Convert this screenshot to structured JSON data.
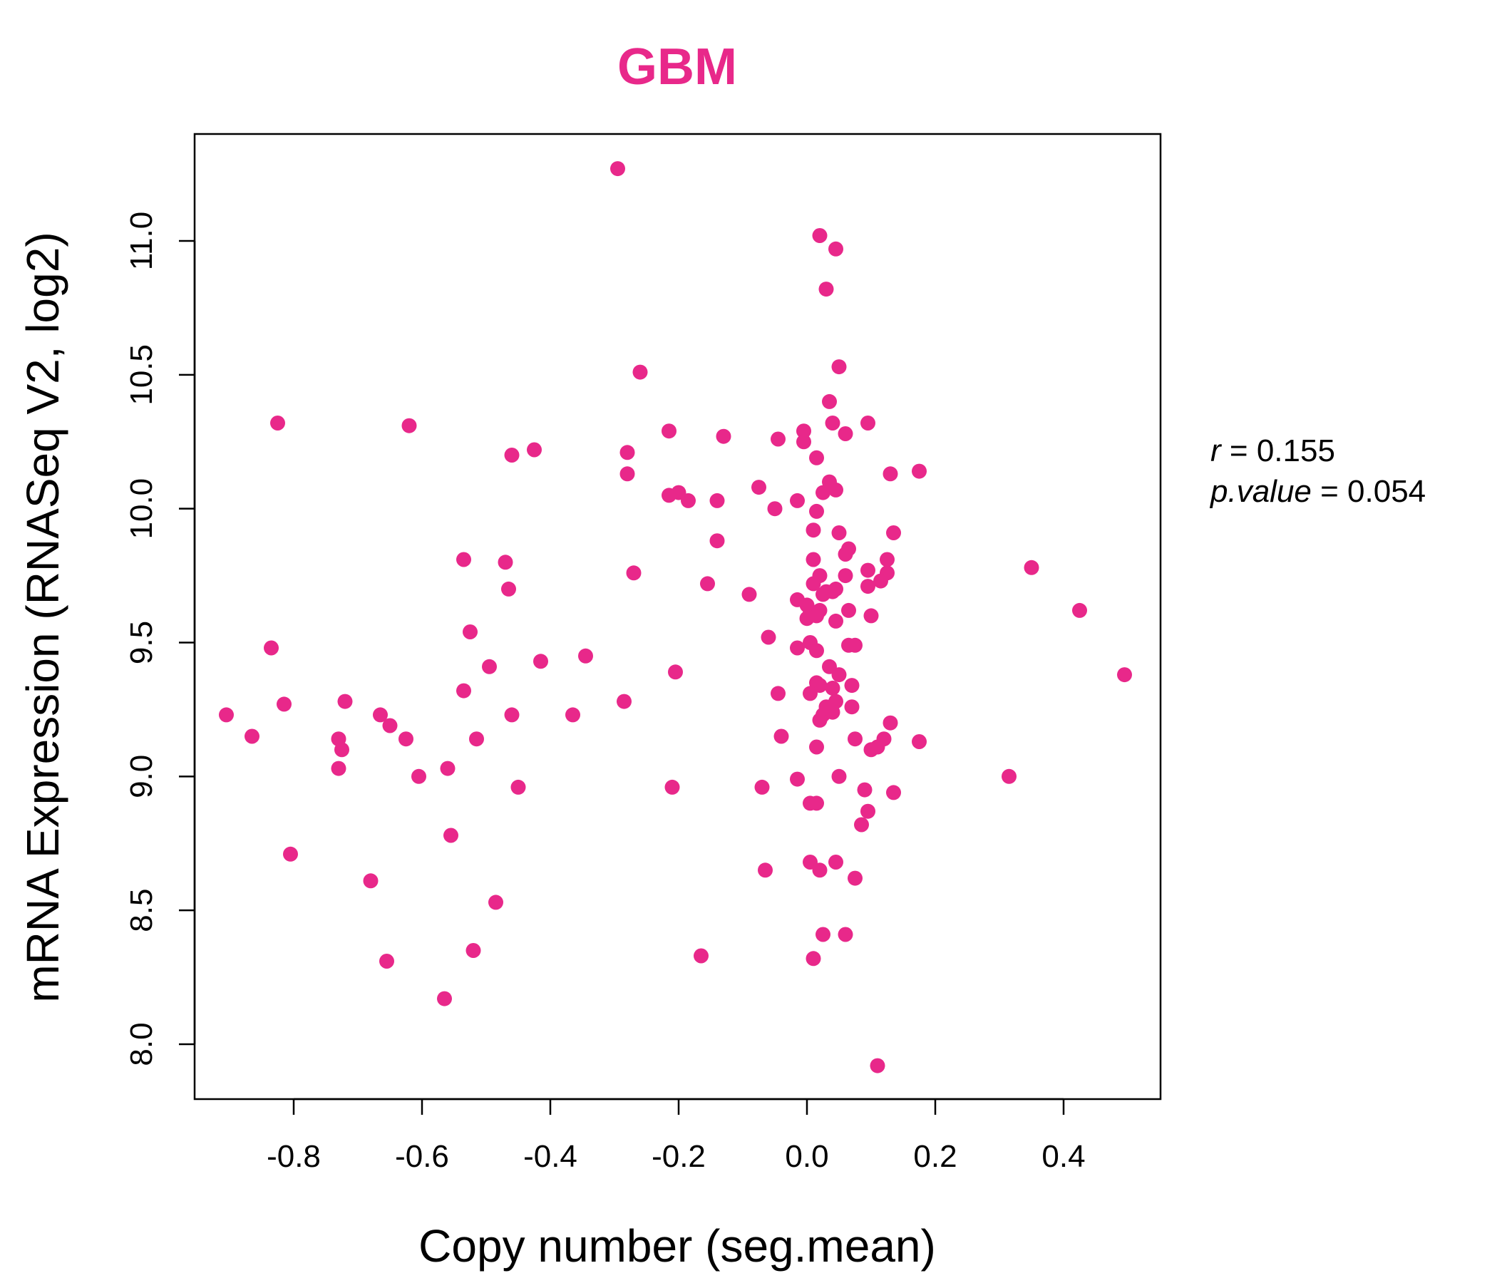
{
  "chart_data": {
    "type": "scatter",
    "title": "GBM",
    "xlabel": "Copy number (seg.mean)",
    "ylabel": "mRNA Expression (RNASeq V2, log2)",
    "xlim": [
      -1.0,
      0.55
    ],
    "ylim": [
      7.8,
      11.4
    ],
    "xticks": [
      -0.8,
      -0.6,
      -0.4,
      -0.2,
      0.0,
      0.2,
      0.4
    ],
    "yticks": [
      8.0,
      8.5,
      9.0,
      9.5,
      10.0,
      10.5,
      11.0
    ],
    "xtick_labels": [
      "-0.8",
      "-0.6",
      "-0.4",
      "-0.2",
      "0.0",
      "0.2",
      "0.4"
    ],
    "ytick_labels": [
      "8.0",
      "8.5",
      "9.0",
      "9.5",
      "10.0",
      "10.5",
      "11.0"
    ],
    "grid": false,
    "colors": {
      "points": "#E8288A",
      "title": "#E8288A"
    },
    "annotations": {
      "r_label": "r",
      "r_value": "0.155",
      "p_label": "p.value",
      "p_value": "0.054"
    },
    "points": [
      [
        -0.295,
        11.27
      ],
      [
        0.02,
        11.02
      ],
      [
        0.045,
        10.97
      ],
      [
        0.03,
        10.82
      ],
      [
        -0.26,
        10.51
      ],
      [
        0.05,
        10.53
      ],
      [
        0.035,
        10.4
      ],
      [
        -0.825,
        10.32
      ],
      [
        -0.62,
        10.31
      ],
      [
        0.04,
        10.32
      ],
      [
        0.095,
        10.32
      ],
      [
        -0.215,
        10.29
      ],
      [
        -0.005,
        10.29
      ],
      [
        0.06,
        10.28
      ],
      [
        -0.13,
        10.27
      ],
      [
        -0.045,
        10.26
      ],
      [
        -0.005,
        10.25
      ],
      [
        -0.425,
        10.22
      ],
      [
        -0.46,
        10.2
      ],
      [
        -0.28,
        10.21
      ],
      [
        0.015,
        10.19
      ],
      [
        -0.28,
        10.13
      ],
      [
        0.13,
        10.13
      ],
      [
        0.175,
        10.14
      ],
      [
        0.035,
        10.1
      ],
      [
        0.045,
        10.07
      ],
      [
        0.025,
        10.06
      ],
      [
        -0.075,
        10.08
      ],
      [
        -0.215,
        10.05
      ],
      [
        -0.2,
        10.06
      ],
      [
        -0.185,
        10.03
      ],
      [
        -0.14,
        10.03
      ],
      [
        -0.015,
        10.03
      ],
      [
        -0.05,
        10.0
      ],
      [
        0.015,
        9.99
      ],
      [
        0.01,
        9.92
      ],
      [
        0.05,
        9.91
      ],
      [
        0.135,
        9.91
      ],
      [
        -0.14,
        9.88
      ],
      [
        0.065,
        9.85
      ],
      [
        0.06,
        9.83
      ],
      [
        -0.535,
        9.81
      ],
      [
        -0.47,
        9.8
      ],
      [
        0.01,
        9.81
      ],
      [
        0.125,
        9.81
      ],
      [
        0.35,
        9.78
      ],
      [
        0.095,
        9.77
      ],
      [
        -0.27,
        9.76
      ],
      [
        0.125,
        9.76
      ],
      [
        0.02,
        9.75
      ],
      [
        0.06,
        9.75
      ],
      [
        0.115,
        9.73
      ],
      [
        -0.155,
        9.72
      ],
      [
        0.01,
        9.72
      ],
      [
        0.095,
        9.71
      ],
      [
        -0.465,
        9.7
      ],
      [
        0.045,
        9.7
      ],
      [
        0.03,
        9.69
      ],
      [
        0.04,
        9.69
      ],
      [
        0.025,
        9.68
      ],
      [
        -0.09,
        9.68
      ],
      [
        -0.015,
        9.66
      ],
      [
        0.0,
        9.64
      ],
      [
        0.425,
        9.62
      ],
      [
        0.065,
        9.62
      ],
      [
        0.02,
        9.62
      ],
      [
        0.005,
        9.61
      ],
      [
        0.015,
        9.6
      ],
      [
        0.1,
        9.6
      ],
      [
        0.0,
        9.59
      ],
      [
        0.045,
        9.58
      ],
      [
        -0.525,
        9.54
      ],
      [
        -0.06,
        9.52
      ],
      [
        0.005,
        9.5
      ],
      [
        0.065,
        9.49
      ],
      [
        0.075,
        9.49
      ],
      [
        -0.015,
        9.48
      ],
      [
        0.015,
        9.47
      ],
      [
        -0.835,
        9.48
      ],
      [
        -0.345,
        9.45
      ],
      [
        -0.415,
        9.43
      ],
      [
        -0.495,
        9.41
      ],
      [
        0.035,
        9.41
      ],
      [
        -0.205,
        9.39
      ],
      [
        0.05,
        9.38
      ],
      [
        0.495,
        9.38
      ],
      [
        0.015,
        9.35
      ],
      [
        0.02,
        9.34
      ],
      [
        0.07,
        9.34
      ],
      [
        0.04,
        9.33
      ],
      [
        -0.535,
        9.32
      ],
      [
        0.005,
        9.31
      ],
      [
        -0.045,
        9.31
      ],
      [
        -0.72,
        9.28
      ],
      [
        -0.285,
        9.28
      ],
      [
        0.045,
        9.28
      ],
      [
        0.03,
        9.26
      ],
      [
        -0.815,
        9.27
      ],
      [
        0.07,
        9.26
      ],
      [
        0.04,
        9.24
      ],
      [
        0.025,
        9.23
      ],
      [
        -0.905,
        9.23
      ],
      [
        -0.665,
        9.23
      ],
      [
        -0.46,
        9.23
      ],
      [
        -0.365,
        9.23
      ],
      [
        0.02,
        9.21
      ],
      [
        0.13,
        9.2
      ],
      [
        -0.65,
        9.19
      ],
      [
        -0.865,
        9.15
      ],
      [
        -0.73,
        9.14
      ],
      [
        -0.625,
        9.14
      ],
      [
        -0.515,
        9.14
      ],
      [
        -0.04,
        9.15
      ],
      [
        0.075,
        9.14
      ],
      [
        0.175,
        9.13
      ],
      [
        0.12,
        9.14
      ],
      [
        -0.725,
        9.1
      ],
      [
        0.015,
        9.11
      ],
      [
        0.1,
        9.1
      ],
      [
        0.11,
        9.11
      ],
      [
        -0.73,
        9.03
      ],
      [
        -0.56,
        9.03
      ],
      [
        -0.605,
        9.0
      ],
      [
        0.05,
        9.0
      ],
      [
        -0.015,
        8.99
      ],
      [
        0.315,
        9.0
      ],
      [
        -0.45,
        8.96
      ],
      [
        -0.21,
        8.96
      ],
      [
        -0.07,
        8.96
      ],
      [
        0.09,
        8.95
      ],
      [
        0.135,
        8.94
      ],
      [
        0.005,
        8.9
      ],
      [
        0.015,
        8.9
      ],
      [
        0.095,
        8.87
      ],
      [
        0.085,
        8.82
      ],
      [
        -0.555,
        8.78
      ],
      [
        -0.805,
        8.71
      ],
      [
        0.005,
        8.68
      ],
      [
        0.045,
        8.68
      ],
      [
        -0.065,
        8.65
      ],
      [
        0.02,
        8.65
      ],
      [
        -0.68,
        8.61
      ],
      [
        0.075,
        8.62
      ],
      [
        -0.485,
        8.53
      ],
      [
        0.025,
        8.41
      ],
      [
        0.06,
        8.41
      ],
      [
        -0.52,
        8.35
      ],
      [
        -0.165,
        8.33
      ],
      [
        0.01,
        8.32
      ],
      [
        -0.655,
        8.31
      ],
      [
        -0.565,
        8.17
      ],
      [
        0.11,
        7.92
      ]
    ]
  }
}
